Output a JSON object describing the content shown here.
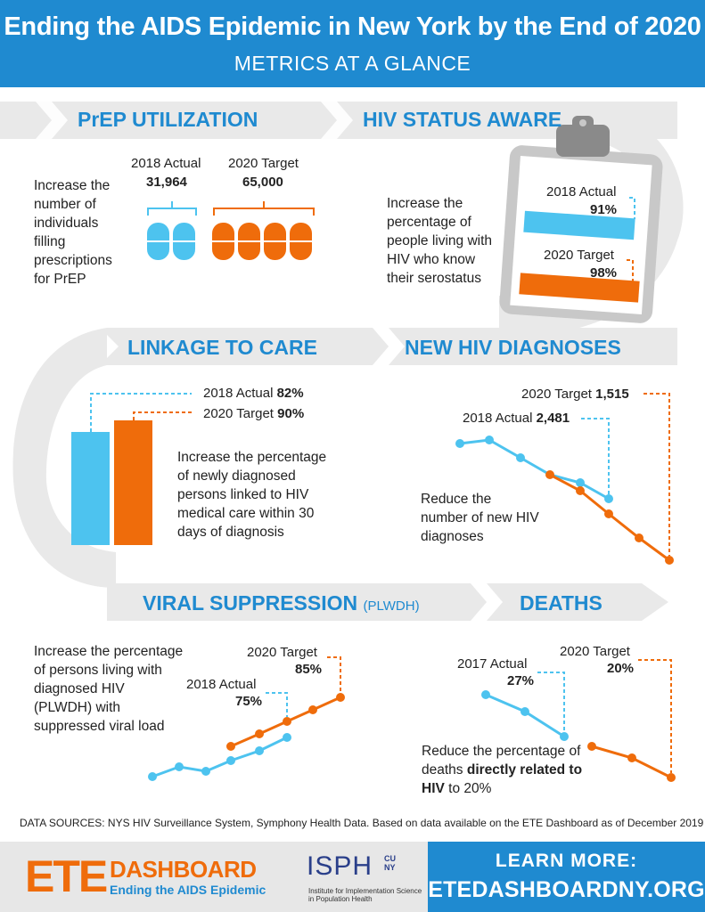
{
  "header": {
    "title": "Ending the AIDS Epidemic in New York by the End of 2020",
    "subtitle": "METRICS AT A GLANCE"
  },
  "colors": {
    "blue": "#1f8ad0",
    "light_blue": "#4dc3ef",
    "orange": "#ef6c0b",
    "gray": "#e9e9e9"
  },
  "prep": {
    "title": "PrEP UTILIZATION",
    "description": "Increase the number of individuals filling prescriptions for PrEP",
    "actual_label": "2018 Actual",
    "actual_value": "31,964",
    "target_label": "2020 Target",
    "target_value": "65,000"
  },
  "hiv_status": {
    "title": "HIV STATUS AWARE",
    "description": "Increase the percentage of people living with HIV who know their serostatus",
    "actual_label": "2018 Actual",
    "actual_value": "91%",
    "target_label": "2020 Target",
    "target_value": "98%"
  },
  "linkage": {
    "title": "LINKAGE TO CARE",
    "description": "Increase the percentage of newly diagnosed persons linked to HIV medical care within 30 days of diagnosis",
    "actual_label": "2018 Actual",
    "actual_value": "82%",
    "target_label": "2020 Target",
    "target_value": "90%"
  },
  "new_dx": {
    "title": "NEW HIV DIAGNOSES",
    "description": "Reduce the number of new HIV diagnoses",
    "actual_label": "2018 Actual",
    "actual_value": "2,481",
    "target_label": "2020 Target",
    "target_value": "1,515"
  },
  "viral": {
    "title": "VIRAL SUPPRESSION",
    "title_suffix": "(PLWDH)",
    "description": "Increase the percentage of persons living with diagnosed HIV (PLWDH) with suppressed viral load",
    "actual_label": "2018 Actual",
    "actual_value": "75%",
    "target_label": "2020 Target",
    "target_value": "85%"
  },
  "deaths": {
    "title": "DEATHS",
    "description_pre": "Reduce the percentage of deaths",
    "description_bold": "directly related to HIV",
    "description_post": "to 20%",
    "actual_label": "2017 Actual",
    "actual_value": "27%",
    "target_label": "2020 Target",
    "target_value": "20%"
  },
  "sources": "DATA SOURCES:  NYS HIV Surveillance System, Symphony Health Data. Based on data available on the ETE Dashboard as of December 2019",
  "footer": {
    "ete_big": "ETE",
    "ete_dashboard": "DASHBOARD",
    "ete_tagline": "Ending the AIDS Epidemic",
    "isph": "ISPH",
    "cuny": "CU NY",
    "isph_tagline": "Institute for Implementation Science in Population Health",
    "learn_more": "LEARN MORE:",
    "url": "ETEDASHBOARDNY.ORG"
  }
}
